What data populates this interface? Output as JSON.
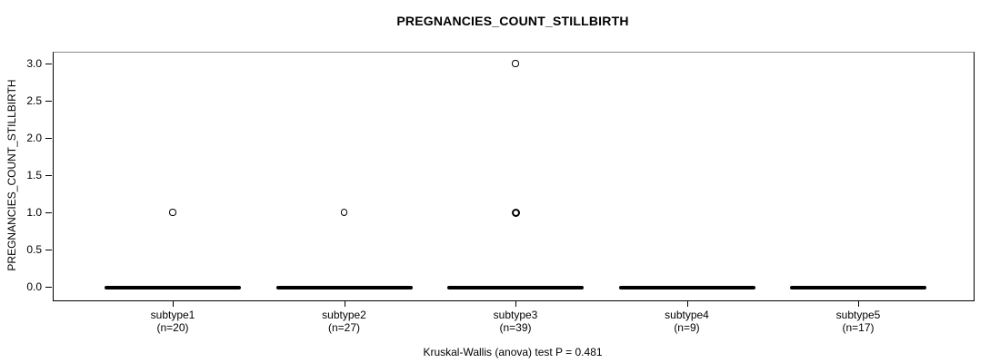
{
  "chart_data": {
    "type": "box",
    "title": "PREGNANCIES_COUNT_STILLBIRTH",
    "ylabel": "PREGNANCIES_COUNT_STILLBIRTH",
    "xlabel": "",
    "ylim": [
      0,
      3
    ],
    "yticks": [
      0,
      0.5,
      1,
      1.5,
      2,
      2.5,
      3
    ],
    "ytick_labels": [
      "0.0",
      "0.5",
      "1.0",
      "1.5",
      "2.0",
      "2.5",
      "3.0"
    ],
    "grid": false,
    "legend": "none",
    "annotation": "Kruskal-Wallis (anova) test P = 0.481",
    "colors": {
      "box": "#000000",
      "outlier_stroke": "#000000",
      "frame": "#000000",
      "text": "#000000"
    },
    "groups": [
      {
        "label": "subtype1",
        "sublabel": "(n=20)",
        "n": 20,
        "median": 0,
        "q1": 0,
        "q3": 0,
        "whisker_low": 0,
        "whisker_high": 0,
        "outliers": [
          {
            "value": 1,
            "emphasis": false
          }
        ]
      },
      {
        "label": "subtype2",
        "sublabel": "(n=27)",
        "n": 27,
        "median": 0,
        "q1": 0,
        "q3": 0,
        "whisker_low": 0,
        "whisker_high": 0,
        "outliers": [
          {
            "value": 1,
            "emphasis": false
          }
        ]
      },
      {
        "label": "subtype3",
        "sublabel": "(n=39)",
        "n": 39,
        "median": 0,
        "q1": 0,
        "q3": 0,
        "whisker_low": 0,
        "whisker_high": 0,
        "outliers": [
          {
            "value": 3,
            "emphasis": false
          },
          {
            "value": 1,
            "emphasis": true
          }
        ]
      },
      {
        "label": "subtype4",
        "sublabel": "(n=9)",
        "n": 9,
        "median": 0,
        "q1": 0,
        "q3": 0,
        "whisker_low": 0,
        "whisker_high": 0,
        "outliers": []
      },
      {
        "label": "subtype5",
        "sublabel": "(n=17)",
        "n": 17,
        "median": 0,
        "q1": 0,
        "q3": 0,
        "whisker_low": 0,
        "whisker_high": 0,
        "outliers": []
      }
    ]
  }
}
